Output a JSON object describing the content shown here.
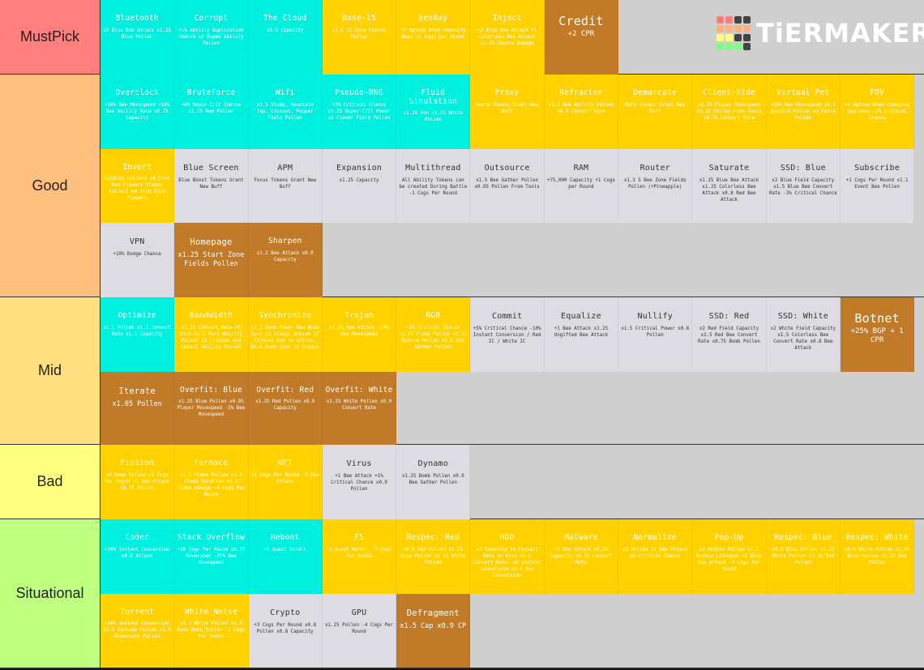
{
  "logo": {
    "text": "TiERMAKER",
    "grid": [
      "#ff7f7f",
      "#ff7f7f",
      "#444",
      "#444",
      "#ffb27f",
      "#ffb27f",
      "#ffb27f",
      "#ffb27f",
      "#ffff7f",
      "#ffff7f",
      "#444",
      "#444",
      "#7fff7f",
      "#7fff7f",
      "#7fff7f",
      "#444"
    ]
  },
  "tiers": [
    {
      "label": "MustPick",
      "color": "#ff7f7f",
      "rows": 1,
      "items": [
        {
          "name": "Bluetooth",
          "desc": "x2 Blue Bee Attack x1.25 Blue Pollen",
          "s": "c"
        },
        {
          "name": "Corrupt",
          "desc": "+1% Ability Duplication Chance x2 Duped Ability Pollen",
          "s": "c"
        },
        {
          "name": "The Cloud",
          "desc": "x2.5 Capacity",
          "s": "c"
        },
        {
          "name": "Base-15",
          "desc": "x1.5 15 Zone Fields Pollen",
          "s": "y"
        },
        {
          "name": "beeBay",
          "desc": "+1 Option When choosing Bees +1 Cogs per Round",
          "s": "y"
        },
        {
          "name": "Inject",
          "desc": "+2 Blue Bee Attack +1 Colorless Bee Attack x1.25 Impale Damage",
          "s": "y"
        },
        {
          "name": "Credit",
          "desc": "+2 CPR",
          "s": "b",
          "big": true
        }
      ]
    },
    {
      "label": "Good",
      "color": "#ffbf7f",
      "rows": 3,
      "items": [
        {
          "name": "Overclock",
          "desc": "+10% Bee Movespeed +10% Bee Ability Rate x0.75 Capacity",
          "s": "c"
        },
        {
          "name": "Bruteforce",
          "desc": "+6% Super-Crit Chance x1.25 Red Pollen",
          "s": "c"
        },
        {
          "name": "Wifi",
          "desc": "x1.5 Stump, Mountain Top, Coconut, Pepper Field Pollen",
          "s": "c"
        },
        {
          "name": "Pseudo-RNG",
          "desc": "+3% Critical Chance x1.25 Super-Crit Power x2 Clover Field Pollen",
          "s": "c"
        },
        {
          "name": "Fluid Simulation",
          "desc": "x1.25 Goo x1.25 White Pollen",
          "s": "c"
        },
        {
          "name": "Proxy",
          "desc": "Haste Tokens Grant New Buff",
          "s": "y"
        },
        {
          "name": "Refractor",
          "desc": "x1.1 Bee Ability Pollen x0.9 Convert Rate",
          "s": "y"
        },
        {
          "name": "Demarcate",
          "desc": "Mark Tokens Grant New Buff",
          "s": "y"
        },
        {
          "name": "Client-Side",
          "desc": "x1.25 Player Movespeed x1.25 Pollen From Tools x0.75 Convert Rate",
          "s": "y"
        },
        {
          "name": "Virtual Pet",
          "desc": "+10% Bee Movespeed x1.5 Scratch Pollen x3 Fetch Pollen",
          "s": "y"
        },
        {
          "name": "FOV",
          "desc": "+1 Option When choosing Upgrades -2% Critical Chance",
          "s": "y"
        },
        {
          "name": "Invert",
          "desc": "Bubbles collect x4 from Red Flowers Flames collect x4 from Blue Flowers",
          "s": "y"
        },
        {
          "name": "Blue Screen",
          "desc": "Blue Boost Tokens Grant New Buff",
          "s": "g"
        },
        {
          "name": "APM",
          "desc": "Focus Tokens Grant New Buff",
          "s": "g"
        },
        {
          "name": "Expansion",
          "desc": "x1.25 Capacity",
          "s": "g"
        },
        {
          "name": "Multithread",
          "desc": "All Ability Tokens can be created During Battle -1 Cogs Per Round",
          "s": "g"
        },
        {
          "name": "Outsource",
          "desc": "x1.5 Bee Gather Pollen x0.85 Pollen From Tools",
          "s": "g"
        },
        {
          "name": "RAM",
          "desc": "+75,000 Capacity +1 Cogs per Round",
          "s": "g"
        },
        {
          "name": "Router",
          "desc": "x1.3 5 Bee Zone Fields Pollen (+Pineapple)",
          "s": "g"
        },
        {
          "name": "Saturate",
          "desc": "x1.25 Blue Bee Attack x1.25 Colorless Bee Attack x0.8 Red Bee Attack",
          "s": "g"
        },
        {
          "name": "SSD: Blue",
          "desc": "x2 Blue Field Capacity x1.5 Blue Bee Convert Rate -3% Critical Chance",
          "s": "g"
        },
        {
          "name": "Subscribe",
          "desc": "+1 Cogs Per Round x1.1 Event Bee Pollen",
          "s": "g"
        },
        {
          "name": "VPN",
          "desc": "+10% Dodge Chance",
          "s": "g"
        },
        {
          "name": "Homepage",
          "desc": "x1.25 Start Zone Fields Pollen",
          "s": "b",
          "med": true
        },
        {
          "name": "Sharpen",
          "desc": "x1.2 Bee Attack x0.9 Capacity",
          "s": "b"
        }
      ]
    },
    {
      "label": "Mid",
      "color": "#ffdf7f",
      "rows": 2,
      "items": [
        {
          "name": "Optimize",
          "desc": "x1.1 Pollen x1.1 Convert Rate x1.1 Capacity",
          "s": "c"
        },
        {
          "name": "Bandwidth",
          "desc": "x1.25 Convert Rate At Hive x1.1 Mark Ability Pollen x3 Crimson and Cobalt Ability Pollen",
          "s": "y"
        },
        {
          "name": "Synchronize",
          "desc": "x1.2 Bomb Power Red Bomb Sync is always active if Crimson Bee is active. Blue Bomb Sync is always",
          "s": "y"
        },
        {
          "name": "Trojan",
          "desc": "x1.25 Bee Attack -10% Bee Movespeed",
          "s": "y"
        },
        {
          "name": "RGB",
          "desc": "+1% Critical Chance x1.25 Flame Pollen x1.25 Bubble Pollen x0.8 Bee Gather Pollen",
          "s": "y"
        },
        {
          "name": "Commit",
          "desc": "+5% Critical Chance -10% Instant Conversion / Red IC / White IC",
          "s": "g"
        },
        {
          "name": "Equalize",
          "desc": "+1 Bee Attack x1.25 Ungifted Bee Attack",
          "s": "g"
        },
        {
          "name": "Nullify",
          "desc": "x1.5 Critical Power x0.8 Pollen",
          "s": "g"
        },
        {
          "name": "SSD: Red",
          "desc": "x2 Red Field Capacity x1.5 Red Bee Convert Rate x0.75 Bomb Pollen",
          "s": "g"
        },
        {
          "name": "SSD: White",
          "desc": "x2 White Field Capacity x1.5 Colorless Bee Convert Rate x0.8 Bee Attack",
          "s": "g"
        },
        {
          "name": "Botnet",
          "desc": "+25% BGP + 1 CPR",
          "s": "b",
          "big": true
        },
        {
          "name": "Iterate",
          "desc": "x1.05 Pollen",
          "s": "b",
          "med": true
        },
        {
          "name": "Overfit: Blue",
          "desc": "x1.25 Blue Pollen x0.95 Player Movespeed -5% Bee Movespeed",
          "s": "b"
        },
        {
          "name": "Overfit: Red",
          "desc": "x1.25 Red Pollen x0.9 Capacity",
          "s": "b"
        },
        {
          "name": "Overfit: White",
          "desc": "x1.25 White Pollen x0.9 Convert Rate",
          "s": "b"
        }
      ]
    },
    {
      "label": "Bad",
      "color": "#ffff7f",
      "rows": 1,
      "items": [
        {
          "name": "Fission",
          "desc": "x4 Bomb Pollen +1 Cogs Per Round +1 Bee Attack x0.75 Pollen",
          "s": "y"
        },
        {
          "name": "Furnace",
          "desc": "x1.5 Flame Pollen x1.5 Flame Duration x1.5 Flame Damage -4 Cogs Per Round",
          "s": "y"
        },
        {
          "name": "NFT",
          "desc": "+4 Cogs Per Round -3 Bee Attack",
          "s": "y"
        },
        {
          "name": "Virus",
          "desc": "+1 Bee Attack +1% Critical Chance x0.9 Pollen",
          "s": "g"
        },
        {
          "name": "Dynamo",
          "desc": "x1.25 Bomb Pollen x0.9 Bee Gather Pollen",
          "s": "g"
        }
      ]
    },
    {
      "label": "Situational",
      "color": "#bfff7f",
      "rows": 2,
      "items": [
        {
          "name": "Codec",
          "desc": "+20% Instant Conversion x0.8 Attack",
          "s": "c"
        },
        {
          "name": "Stack Overflow",
          "desc": "+10 Cogs Per Round x0.75 Movespeed -25% Bee Movespeed",
          "s": "c"
        },
        {
          "name": "Reboot",
          "desc": "+1 Quest Reroll",
          "s": "c"
        },
        {
          "name": "F5",
          "desc": "+1 Quest Reroll -3 Cogs Per Round",
          "s": "y"
        },
        {
          "name": "Respec: Red",
          "desc": "x0.6 Red Pollen x1.25 Blue Pollen x1.25 White Pollen",
          "s": "y"
        },
        {
          "name": "HDD",
          "desc": "x3 Capacity x4 Convert Rate at Hive x0.5 Convert Rate. x0 Instant Conversion x0.5 Goo Conversion",
          "s": "y"
        },
        {
          "name": "Malware",
          "desc": "+3 Bee Attack x0.75 Capacity x0.75 Convert Rate",
          "s": "y"
        },
        {
          "name": "Normalize",
          "desc": "x2 Pollen x2 Bee Attack x0 Critical Chance",
          "s": "y"
        },
        {
          "name": "Pop-Up",
          "desc": "x2 Bubble Pollen x1.5 Bubble Lifespan +2 Blue Bee Attack -4 Cogs Per Round",
          "s": "y"
        },
        {
          "name": "Respec: Blue",
          "desc": "x0.6 Blue Pollen x1.25 White Pollen x1.25 Red Pollen",
          "s": "y"
        },
        {
          "name": "Respec: White",
          "desc": "x0.6 White Pollen x1.25 Blue Pollen x1.25 Red Pollen",
          "s": "y"
        },
        {
          "name": "Torrent",
          "desc": "+10% Instant Conversion x1.5 Tornado Pollen x1.5 Beamstorm Pollen",
          "s": "y"
        },
        {
          "name": "White Noise",
          "desc": "x1.1 White Pollen x1.5 Buzz Bomb Pollen -1 Cogs Per Round",
          "s": "y"
        },
        {
          "name": "Crypto",
          "desc": "+3 Cogs Per Round x0.8 Pollen x0.8 Capacity",
          "s": "g"
        },
        {
          "name": "GPU",
          "desc": "x1.25 Pollen -4 Cogs Per Round",
          "s": "g"
        },
        {
          "name": "Defragment",
          "desc": "x1.5 Cap x0.9 CP",
          "s": "b",
          "med": true
        }
      ]
    }
  ]
}
